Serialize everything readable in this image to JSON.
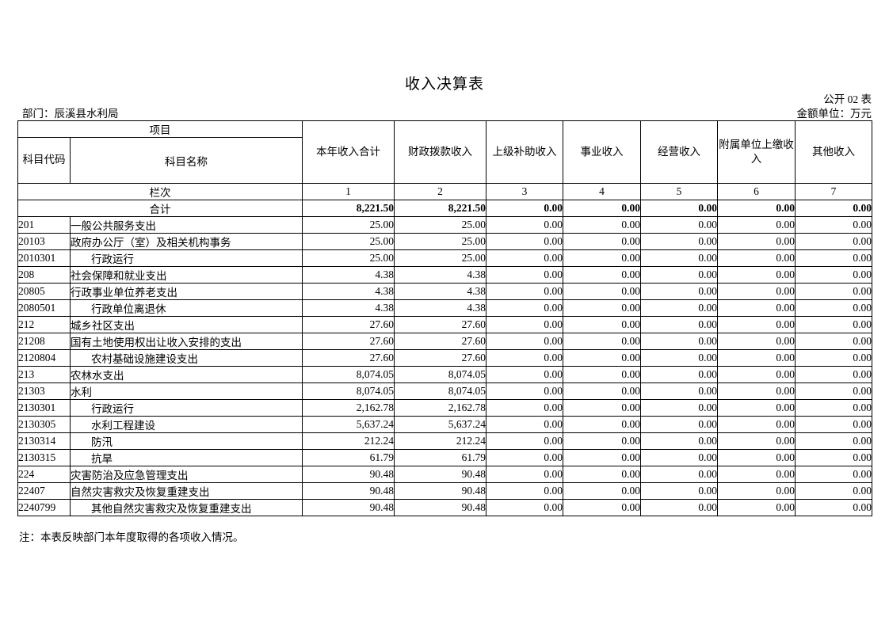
{
  "page": {
    "title": "收入决算表",
    "table_code": "公开 02 表",
    "department": "部门：辰溪县水利局",
    "unit": "金额单位：万元",
    "note": "注：本表反映部门本年度取得的各项收入情况。"
  },
  "table": {
    "header": {
      "project": "项目",
      "code": "科目代码",
      "name": "科目名称",
      "columns": [
        "本年收入合计",
        "财政拨款收入",
        "上级补助收入",
        "事业收入",
        "经营收入",
        "附属单位上缴收入",
        "其他收入"
      ]
    },
    "lanci": {
      "label": "栏次",
      "indices": [
        "1",
        "2",
        "3",
        "4",
        "5",
        "6",
        "7"
      ]
    },
    "total": {
      "label": "合计",
      "values": [
        "8,221.50",
        "8,221.50",
        "0.00",
        "0.00",
        "0.00",
        "0.00",
        "0.00"
      ]
    },
    "rows": [
      {
        "code": "201",
        "name": "一般公共服务支出",
        "indent": false,
        "values": [
          "25.00",
          "25.00",
          "0.00",
          "0.00",
          "0.00",
          "0.00",
          "0.00"
        ]
      },
      {
        "code": "20103",
        "name": "政府办公厅（室）及相关机构事务",
        "indent": false,
        "values": [
          "25.00",
          "25.00",
          "0.00",
          "0.00",
          "0.00",
          "0.00",
          "0.00"
        ]
      },
      {
        "code": "2010301",
        "name": "行政运行",
        "indent": true,
        "values": [
          "25.00",
          "25.00",
          "0.00",
          "0.00",
          "0.00",
          "0.00",
          "0.00"
        ]
      },
      {
        "code": "208",
        "name": "社会保障和就业支出",
        "indent": false,
        "values": [
          "4.38",
          "4.38",
          "0.00",
          "0.00",
          "0.00",
          "0.00",
          "0.00"
        ]
      },
      {
        "code": "20805",
        "name": "行政事业单位养老支出",
        "indent": false,
        "values": [
          "4.38",
          "4.38",
          "0.00",
          "0.00",
          "0.00",
          "0.00",
          "0.00"
        ]
      },
      {
        "code": "2080501",
        "name": "行政单位离退休",
        "indent": true,
        "values": [
          "4.38",
          "4.38",
          "0.00",
          "0.00",
          "0.00",
          "0.00",
          "0.00"
        ]
      },
      {
        "code": "212",
        "name": "城乡社区支出",
        "indent": false,
        "values": [
          "27.60",
          "27.60",
          "0.00",
          "0.00",
          "0.00",
          "0.00",
          "0.00"
        ]
      },
      {
        "code": "21208",
        "name": "国有土地使用权出让收入安排的支出",
        "indent": false,
        "values": [
          "27.60",
          "27.60",
          "0.00",
          "0.00",
          "0.00",
          "0.00",
          "0.00"
        ]
      },
      {
        "code": "2120804",
        "name": "农村基础设施建设支出",
        "indent": true,
        "values": [
          "27.60",
          "27.60",
          "0.00",
          "0.00",
          "0.00",
          "0.00",
          "0.00"
        ]
      },
      {
        "code": "213",
        "name": "农林水支出",
        "indent": false,
        "values": [
          "8,074.05",
          "8,074.05",
          "0.00",
          "0.00",
          "0.00",
          "0.00",
          "0.00"
        ]
      },
      {
        "code": "21303",
        "name": "水利",
        "indent": false,
        "values": [
          "8,074.05",
          "8,074.05",
          "0.00",
          "0.00",
          "0.00",
          "0.00",
          "0.00"
        ]
      },
      {
        "code": "2130301",
        "name": "行政运行",
        "indent": true,
        "values": [
          "2,162.78",
          "2,162.78",
          "0.00",
          "0.00",
          "0.00",
          "0.00",
          "0.00"
        ]
      },
      {
        "code": "2130305",
        "name": "水利工程建设",
        "indent": true,
        "values": [
          "5,637.24",
          "5,637.24",
          "0.00",
          "0.00",
          "0.00",
          "0.00",
          "0.00"
        ]
      },
      {
        "code": "2130314",
        "name": "防汛",
        "indent": true,
        "values": [
          "212.24",
          "212.24",
          "0.00",
          "0.00",
          "0.00",
          "0.00",
          "0.00"
        ]
      },
      {
        "code": "2130315",
        "name": "抗旱",
        "indent": true,
        "values": [
          "61.79",
          "61.79",
          "0.00",
          "0.00",
          "0.00",
          "0.00",
          "0.00"
        ]
      },
      {
        "code": "224",
        "name": "灾害防治及应急管理支出",
        "indent": false,
        "values": [
          "90.48",
          "90.48",
          "0.00",
          "0.00",
          "0.00",
          "0.00",
          "0.00"
        ]
      },
      {
        "code": "22407",
        "name": "自然灾害救灾及恢复重建支出",
        "indent": false,
        "values": [
          "90.48",
          "90.48",
          "0.00",
          "0.00",
          "0.00",
          "0.00",
          "0.00"
        ]
      },
      {
        "code": "2240799",
        "name": "其他自然灾害救灾及恢复重建支出",
        "indent": true,
        "values": [
          "90.48",
          "90.48",
          "0.00",
          "0.00",
          "0.00",
          "0.00",
          "0.00"
        ]
      }
    ]
  }
}
